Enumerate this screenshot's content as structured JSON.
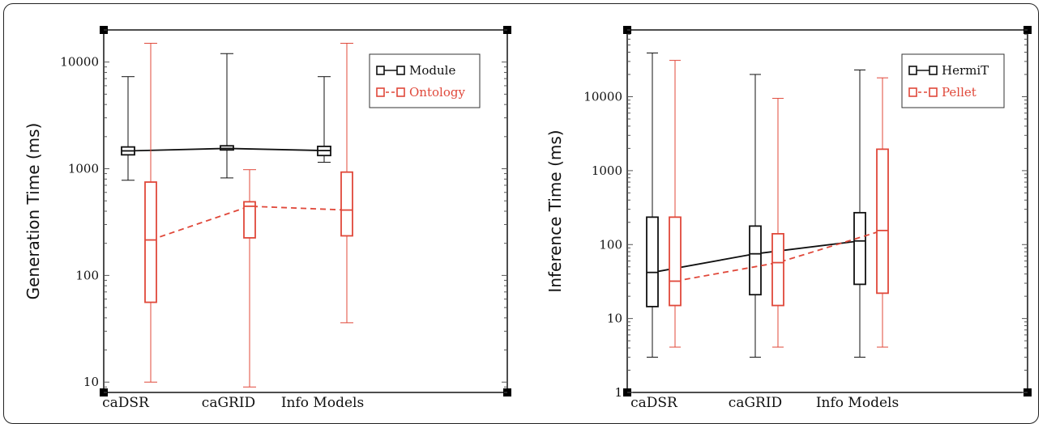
{
  "chart_data": [
    {
      "type": "box",
      "ylabel": "Generation Time (ms)",
      "yscale": "log",
      "ylim": [
        8,
        20000
      ],
      "yticks": [
        10,
        100,
        1000,
        10000
      ],
      "categories": [
        "caDSR",
        "caGRID",
        "Info Models"
      ],
      "legend_position": "top-right",
      "series": [
        {
          "name": "Module",
          "color": "#111111",
          "line_style": "solid",
          "boxes": [
            {
              "min": 780,
              "q1": 1350,
              "median": 1470,
              "q3": 1600,
              "max": 7300
            },
            {
              "min": 820,
              "q1": 1500,
              "median": 1550,
              "q3": 1640,
              "max": 12000
            },
            {
              "min": 1150,
              "q1": 1330,
              "median": 1480,
              "q3": 1620,
              "max": 7300
            }
          ]
        },
        {
          "name": "Ontology",
          "color": "#e0483a",
          "line_style": "dashed",
          "boxes": [
            {
              "min": 10,
              "q1": 56,
              "median": 215,
              "q3": 750,
              "max": 15000
            },
            {
              "min": 9,
              "q1": 225,
              "median": 445,
              "q3": 490,
              "max": 980
            },
            {
              "min": 36,
              "q1": 235,
              "median": 410,
              "q3": 930,
              "max": 15000
            }
          ]
        }
      ]
    },
    {
      "type": "box",
      "ylabel": "Inference Time (ms)",
      "yscale": "log",
      "ylim": [
        1,
        80000
      ],
      "yticks": [
        1,
        10,
        100,
        1000,
        10000
      ],
      "categories": [
        "caDSR",
        "caGRID",
        "Info Models"
      ],
      "legend_position": "top-right",
      "series": [
        {
          "name": "HermiT",
          "color": "#111111",
          "line_style": "solid",
          "boxes": [
            {
              "min": 3,
              "q1": 14.5,
              "median": 42,
              "q3": 235,
              "max": 39000
            },
            {
              "min": 3,
              "q1": 21,
              "median": 75,
              "q3": 178,
              "max": 20000
            },
            {
              "min": 3,
              "q1": 29,
              "median": 112,
              "q3": 270,
              "max": 23000
            }
          ]
        },
        {
          "name": "Pellet",
          "color": "#e0483a",
          "line_style": "dashed",
          "boxes": [
            {
              "min": 4.1,
              "q1": 15,
              "median": 32,
              "q3": 235,
              "max": 31000
            },
            {
              "min": 4.1,
              "q1": 15,
              "median": 57,
              "q3": 140,
              "max": 9500
            },
            {
              "min": 4.1,
              "q1": 22,
              "median": 155,
              "q3": 1950,
              "max": 18000
            }
          ]
        }
      ]
    }
  ]
}
